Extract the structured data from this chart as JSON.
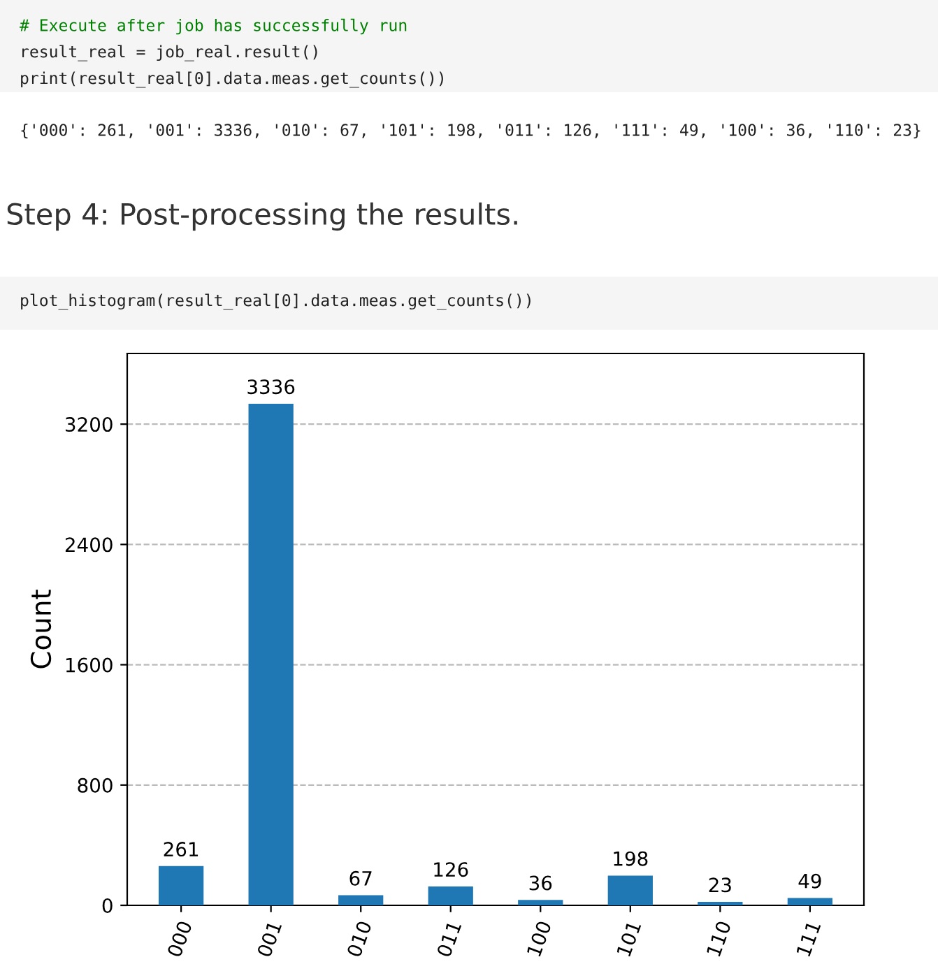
{
  "chart_data": {
    "type": "bar",
    "title": "Step 4: Post-processing the results.",
    "ylabel": "Count",
    "annotations": [
      "# Execute after job has successfully run",
      "result_real = job_real.result()",
      "print(result_real[0].data.meas.get_counts())",
      "{'000': 261, '001': 3336, '010': 67, '101': 198, '011': 126, '111': 49, '100': 36, '110': 23}",
      "plot_histogram(result_real[0].data.meas.get_counts())"
    ],
    "categories": [
      "000",
      "001",
      "010",
      "011",
      "100",
      "101",
      "110",
      "111"
    ],
    "values": [
      261,
      3336,
      67,
      126,
      36,
      198,
      23,
      49
    ],
    "color": "#1f77b4",
    "ylim": [
      0,
      3670
    ],
    "yticks": [
      0,
      800,
      1600,
      2400,
      3200
    ],
    "grid": "y",
    "data_labels": true
  }
}
